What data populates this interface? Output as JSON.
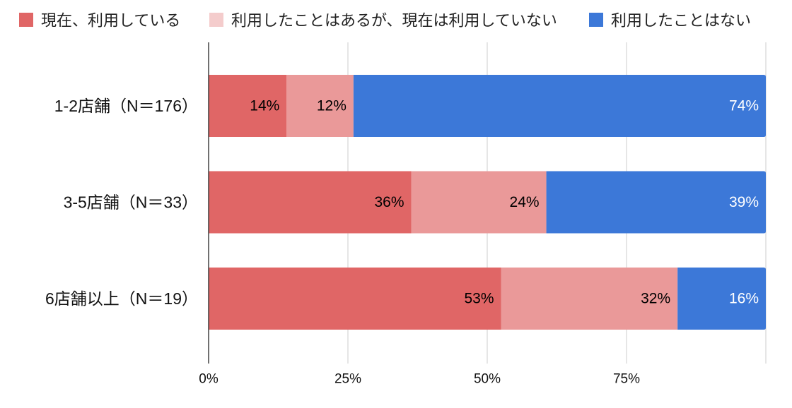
{
  "chart_data": {
    "type": "bar",
    "orientation": "horizontal",
    "stacked": true,
    "normalized": true,
    "categories": [
      "1-2店舗（N＝176）",
      "3-5店舗（N＝33）",
      "6店舗以上（N＝19）"
    ],
    "series": [
      {
        "name": "現在、利用している",
        "values": [
          14,
          36,
          53
        ],
        "labels": [
          "14%",
          "36%",
          "53%"
        ],
        "color": "#e06666",
        "legend_color": "#e06666",
        "label_color": "#000000"
      },
      {
        "name": "利用したことはあるが、現在は利用していない",
        "values": [
          12,
          24,
          32
        ],
        "labels": [
          "12%",
          "24%",
          "32%"
        ],
        "color": "#ea9999",
        "legend_color": "#f4cccc",
        "label_color": "#000000"
      },
      {
        "name": "利用したことはない",
        "values": [
          74,
          39,
          16
        ],
        "labels": [
          "74%",
          "39%",
          "16%"
        ],
        "color": "#3c78d8",
        "legend_color": "#3c78d8",
        "label_color": "#ffffff"
      }
    ],
    "xlim": [
      0,
      100
    ],
    "xticks": [
      0,
      25,
      50,
      75
    ],
    "xtick_labels": [
      "0%",
      "25%",
      "50%",
      "75%"
    ],
    "xgrid": [
      25,
      50,
      75,
      100
    ],
    "grid": true,
    "legend": "top"
  }
}
